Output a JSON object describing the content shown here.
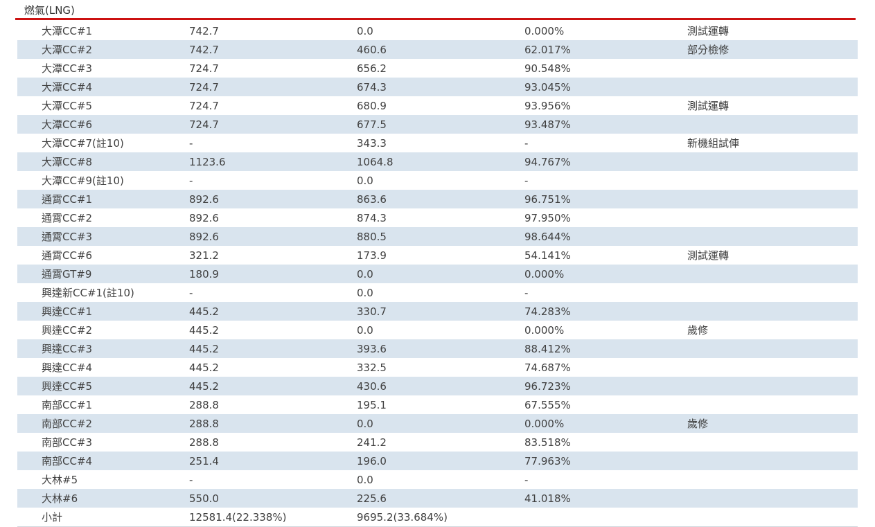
{
  "page": {
    "title": "燃氣(LNG)"
  },
  "colors": {
    "accent_red": "#cc1111",
    "row_alt_blue": "#d9e4ee",
    "text": "#404040"
  },
  "table": {
    "rows": [
      {
        "name": "大潭CC#1",
        "capacity": "742.7",
        "output": "0.0",
        "percent": "0.000%",
        "remark": "測試運轉"
      },
      {
        "name": "大潭CC#2",
        "capacity": "742.7",
        "output": "460.6",
        "percent": "62.017%",
        "remark": "部分檢修"
      },
      {
        "name": "大潭CC#3",
        "capacity": "724.7",
        "output": "656.2",
        "percent": "90.548%",
        "remark": ""
      },
      {
        "name": "大潭CC#4",
        "capacity": "724.7",
        "output": "674.3",
        "percent": "93.045%",
        "remark": ""
      },
      {
        "name": "大潭CC#5",
        "capacity": "724.7",
        "output": "680.9",
        "percent": "93.956%",
        "remark": "測試運轉"
      },
      {
        "name": "大潭CC#6",
        "capacity": "724.7",
        "output": "677.5",
        "percent": "93.487%",
        "remark": ""
      },
      {
        "name": "大潭CC#7(註10)",
        "capacity": "-",
        "output": "343.3",
        "percent": "-",
        "remark": "新機組試俥"
      },
      {
        "name": "大潭CC#8",
        "capacity": "1123.6",
        "output": "1064.8",
        "percent": "94.767%",
        "remark": ""
      },
      {
        "name": "大潭CC#9(註10)",
        "capacity": "-",
        "output": "0.0",
        "percent": "-",
        "remark": ""
      },
      {
        "name": "通霄CC#1",
        "capacity": "892.6",
        "output": "863.6",
        "percent": "96.751%",
        "remark": ""
      },
      {
        "name": "通霄CC#2",
        "capacity": "892.6",
        "output": "874.3",
        "percent": "97.950%",
        "remark": ""
      },
      {
        "name": "通霄CC#3",
        "capacity": "892.6",
        "output": "880.5",
        "percent": "98.644%",
        "remark": ""
      },
      {
        "name": "通霄CC#6",
        "capacity": "321.2",
        "output": "173.9",
        "percent": "54.141%",
        "remark": "測試運轉"
      },
      {
        "name": "通霄GT#9",
        "capacity": "180.9",
        "output": "0.0",
        "percent": "0.000%",
        "remark": ""
      },
      {
        "name": "興達新CC#1(註10)",
        "capacity": "-",
        "output": "0.0",
        "percent": "-",
        "remark": ""
      },
      {
        "name": "興達CC#1",
        "capacity": "445.2",
        "output": "330.7",
        "percent": "74.283%",
        "remark": ""
      },
      {
        "name": "興達CC#2",
        "capacity": "445.2",
        "output": "0.0",
        "percent": "0.000%",
        "remark": "歲修"
      },
      {
        "name": "興達CC#3",
        "capacity": "445.2",
        "output": "393.6",
        "percent": "88.412%",
        "remark": ""
      },
      {
        "name": "興達CC#4",
        "capacity": "445.2",
        "output": "332.5",
        "percent": "74.687%",
        "remark": ""
      },
      {
        "name": "興達CC#5",
        "capacity": "445.2",
        "output": "430.6",
        "percent": "96.723%",
        "remark": ""
      },
      {
        "name": "南部CC#1",
        "capacity": "288.8",
        "output": "195.1",
        "percent": "67.555%",
        "remark": ""
      },
      {
        "name": "南部CC#2",
        "capacity": "288.8",
        "output": "0.0",
        "percent": "0.000%",
        "remark": "歲修"
      },
      {
        "name": "南部CC#3",
        "capacity": "288.8",
        "output": "241.2",
        "percent": "83.518%",
        "remark": ""
      },
      {
        "name": "南部CC#4",
        "capacity": "251.4",
        "output": "196.0",
        "percent": "77.963%",
        "remark": ""
      },
      {
        "name": "大林#5",
        "capacity": "-",
        "output": "0.0",
        "percent": "-",
        "remark": ""
      },
      {
        "name": "大林#6",
        "capacity": "550.0",
        "output": "225.6",
        "percent": "41.018%",
        "remark": ""
      },
      {
        "name": "小計",
        "capacity": "12581.4(22.338%)",
        "output": "9695.2(33.684%)",
        "percent": "",
        "remark": ""
      }
    ]
  }
}
